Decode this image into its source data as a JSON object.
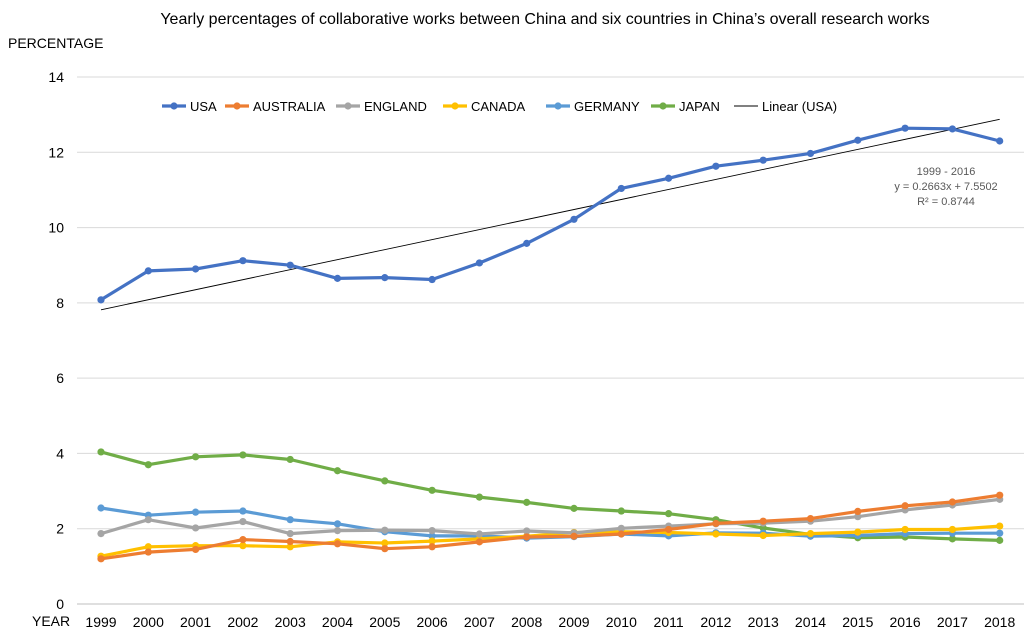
{
  "chart_data": {
    "type": "line",
    "title": "Yearly percentages of collaborative works between China and six countries in China’s overall research works",
    "ylabel": "PERCENTAGE",
    "xlabel": "YEAR",
    "ylim": [
      0,
      14
    ],
    "yticks": [
      "0",
      "2",
      "4",
      "6",
      "8",
      "10",
      "12",
      "14"
    ],
    "grid": true,
    "legend_position": "top",
    "categories": [
      "1999",
      "2000",
      "2001",
      "2002",
      "2003",
      "2004",
      "2005",
      "2006",
      "2007",
      "2008",
      "2009",
      "2010",
      "2011",
      "2012",
      "2013",
      "2014",
      "2015",
      "2016",
      "2017",
      "2018"
    ],
    "series": [
      {
        "name": "USA",
        "color": "#4472C4",
        "values": [
          8.08,
          8.85,
          8.9,
          9.12,
          9.0,
          8.65,
          8.67,
          8.62,
          9.06,
          9.58,
          10.22,
          11.04,
          11.31,
          11.63,
          11.79,
          11.97,
          12.32,
          12.64,
          12.62,
          12.3
        ]
      },
      {
        "name": "AUSTRALIA",
        "color": "#ED7D31",
        "values": [
          1.2,
          1.38,
          1.45,
          1.71,
          1.66,
          1.6,
          1.47,
          1.52,
          1.65,
          1.78,
          1.8,
          1.86,
          1.98,
          2.14,
          2.2,
          2.27,
          2.46,
          2.61,
          2.71,
          2.89
        ]
      },
      {
        "name": "ENGLAND",
        "color": "#A5A5A5",
        "values": [
          1.87,
          2.24,
          2.02,
          2.19,
          1.87,
          1.95,
          1.96,
          1.95,
          1.86,
          1.94,
          1.89,
          2.01,
          2.07,
          2.13,
          2.15,
          2.2,
          2.32,
          2.5,
          2.63,
          2.78
        ]
      },
      {
        "name": "CANADA",
        "color": "#FFC000",
        "values": [
          1.27,
          1.52,
          1.55,
          1.55,
          1.52,
          1.65,
          1.62,
          1.67,
          1.73,
          1.8,
          1.9,
          1.92,
          1.9,
          1.86,
          1.82,
          1.87,
          1.91,
          1.98,
          1.98,
          2.07
        ]
      },
      {
        "name": "GERMANY",
        "color": "#5B9BD5",
        "values": [
          2.55,
          2.36,
          2.44,
          2.47,
          2.24,
          2.13,
          1.92,
          1.81,
          1.81,
          1.75,
          1.79,
          1.86,
          1.81,
          1.89,
          1.88,
          1.8,
          1.82,
          1.87,
          1.88,
          1.88
        ]
      },
      {
        "name": "JAPAN",
        "color": "#70AD47",
        "values": [
          4.04,
          3.7,
          3.91,
          3.96,
          3.84,
          3.54,
          3.27,
          3.02,
          2.84,
          2.7,
          2.54,
          2.47,
          2.4,
          2.24,
          2.02,
          1.85,
          1.76,
          1.78,
          1.73,
          1.69
        ]
      }
    ],
    "trendline": {
      "name": "Linear (USA)",
      "color": "#000000",
      "slope": 0.2663,
      "intercept": 7.5502,
      "label_range": "1999 - 2016",
      "label_equation": "y = 0.2663x + 7.5502",
      "label_r2": "R² = 0.8744"
    }
  }
}
